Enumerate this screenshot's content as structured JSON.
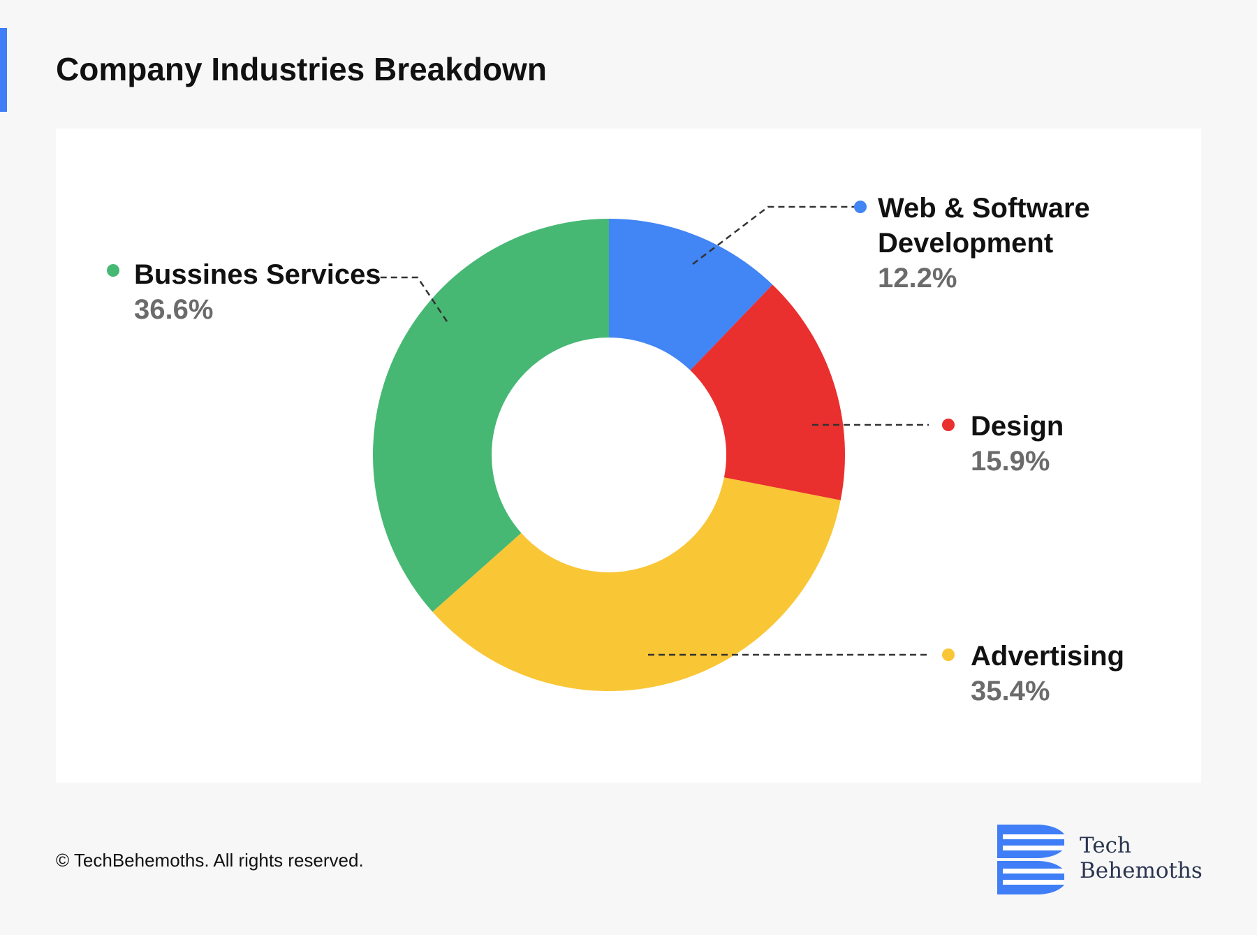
{
  "title": "Company Industries Breakdown",
  "footer": "© TechBehemoths. All rights reserved.",
  "logo": {
    "line1": "Tech",
    "line2": "Behemoths",
    "color": "#3f7ef6"
  },
  "chart_data": {
    "type": "pie",
    "subtype": "donut",
    "title": "Company Industries Breakdown",
    "slices": [
      {
        "name": "Web & Software Development",
        "name_lines": [
          "Web & Software",
          "Development"
        ],
        "value": 12.2,
        "label": "12.2%",
        "color": "#4285f4"
      },
      {
        "name": "Design",
        "name_lines": [
          "Design"
        ],
        "value": 15.9,
        "label": "15.9%",
        "color": "#ea2f2f"
      },
      {
        "name": "Advertising",
        "name_lines": [
          "Advertising"
        ],
        "value": 35.4,
        "label": "35.4%",
        "color": "#f9c635"
      },
      {
        "name": "Bussines Services",
        "name_lines": [
          "Bussines Services"
        ],
        "value": 36.6,
        "label": "36.6%",
        "color": "#46b873"
      }
    ],
    "legend": "callout labels around the chart"
  }
}
